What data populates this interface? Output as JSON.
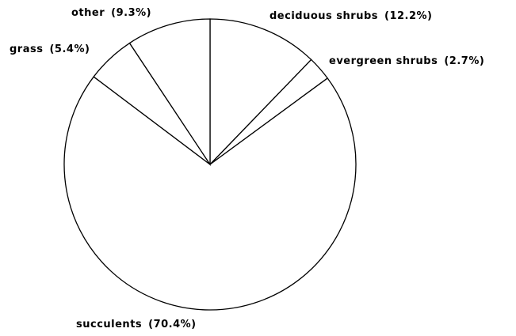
{
  "chart_data": {
    "type": "pie",
    "categories": [
      "deciduous shrubs",
      "evergreen shrubs",
      "succulents",
      "grass",
      "other"
    ],
    "values": [
      12.2,
      2.7,
      70.4,
      5.4,
      9.3
    ],
    "value_labels": [
      "(12.2%)",
      "(2.7%)",
      "(70.4%)",
      "(5.4%)",
      "(9.3%)"
    ],
    "color": "#ffffff"
  }
}
